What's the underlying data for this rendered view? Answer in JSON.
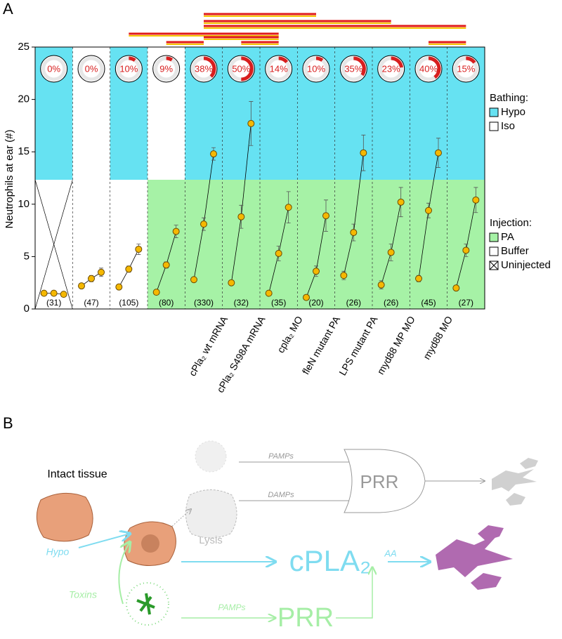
{
  "panels": {
    "a": "A",
    "b": "B"
  },
  "chart_data": {
    "type": "line",
    "y_label": "Neutrophils at ear (#)",
    "ylim": [
      0,
      25
    ],
    "yticks": [
      0,
      5,
      10,
      15,
      20,
      25
    ],
    "categories": [
      null,
      null,
      null,
      null,
      null,
      "cPla₂ wt mRNA",
      "cPla₂ S498A mRNA",
      "cpla₂ MO",
      "fleN mutant PA",
      "LPS mutant PA",
      "myd88 MP MO",
      "myd88 MO"
    ],
    "point_color": "#f5b800",
    "groups": [
      {
        "values": [
          1.5,
          1.5,
          1.4
        ],
        "errors": [
          0.1,
          0.1,
          0.1
        ]
      },
      {
        "values": [
          2.2,
          2.9,
          3.5
        ],
        "errors": [
          0.2,
          0.3,
          0.4
        ]
      },
      {
        "values": [
          2.1,
          3.8,
          5.7
        ],
        "errors": [
          0.2,
          0.3,
          0.5
        ]
      },
      {
        "values": [
          1.6,
          4.2,
          7.4
        ],
        "errors": [
          0.1,
          0.3,
          0.6
        ]
      },
      {
        "values": [
          2.8,
          8.1,
          14.8
        ],
        "errors": [
          0.2,
          0.6,
          0.6
        ]
      },
      {
        "values": [
          2.5,
          8.8,
          17.7
        ],
        "errors": [
          0.2,
          1.1,
          2.1
        ]
      },
      {
        "values": [
          1.5,
          5.3,
          9.7
        ],
        "errors": [
          0.2,
          0.7,
          1.5
        ]
      },
      {
        "values": [
          1.1,
          3.6,
          8.9
        ],
        "errors": [
          0.1,
          0.5,
          1.5
        ]
      },
      {
        "values": [
          3.2,
          7.3,
          14.9
        ],
        "errors": [
          0.4,
          0.8,
          1.7
        ]
      },
      {
        "values": [
          2.3,
          5.4,
          10.2
        ],
        "errors": [
          0.4,
          0.8,
          1.4
        ]
      },
      {
        "values": [
          2.9,
          9.4,
          14.9
        ],
        "errors": [
          0.3,
          0.7,
          1.4
        ]
      },
      {
        "values": [
          2.0,
          5.6,
          10.4
        ],
        "errors": [
          0.2,
          0.6,
          1.2
        ]
      }
    ],
    "percent": {
      "values": [
        0,
        0,
        10,
        9,
        38,
        50,
        14,
        10,
        35,
        23,
        40,
        15
      ],
      "value_labels": [
        "0%",
        "0%",
        "10%",
        "9%",
        "38%",
        "50%",
        "14%",
        "10%",
        "35%",
        "23%",
        "40%",
        "15%"
      ],
      "color": "#d81e1e"
    },
    "counts": {
      "values": [
        31,
        47,
        105,
        80,
        330,
        32,
        35,
        20,
        26,
        26,
        45,
        27
      ],
      "value_labels": [
        "(31)",
        "(47)",
        "(105)",
        "(80)",
        "(330)",
        "(32)",
        "(35)",
        "(20)",
        "(26)",
        "(26)",
        "(45)",
        "(27)"
      ]
    },
    "comparisons": [
      [
        4,
        7
      ],
      [
        4,
        9
      ],
      [
        4,
        11
      ],
      [
        2,
        6
      ],
      [
        4,
        6
      ],
      [
        3,
        4
      ],
      [
        5,
        6
      ],
      [
        10,
        11
      ]
    ],
    "bathing": {
      "title": "Bathing:",
      "items": [
        {
          "label": "Hypo",
          "color": "#66e2f2"
        },
        {
          "label": "Iso",
          "color": "#ffffff"
        }
      ],
      "groups": [
        0,
        1,
        0,
        1,
        0,
        0,
        0,
        0,
        0,
        0,
        0,
        0
      ]
    },
    "injection": {
      "title": "Injection:",
      "items": [
        {
          "label": "PA",
          "color": "#a6f2a6"
        },
        {
          "label": "Buffer",
          "color": "#ffffff"
        },
        {
          "label": "Uninjected",
          "color": "#ffffff"
        }
      ],
      "groups": [
        2,
        1,
        1,
        0,
        0,
        0,
        0,
        0,
        0,
        0,
        0,
        0
      ]
    }
  },
  "panel_b": {
    "intact": "Intact tissue",
    "hypo": "Hypo",
    "toxins": "Toxins",
    "lysis": "Lysis",
    "pamps_top": "PAMPs",
    "damps": "DAMPs",
    "prr_top": "PRR",
    "cpla2": "cPLA₂",
    "aa": "AA",
    "pamps_bottom": "PAMPs",
    "prr_bottom": "PRR"
  }
}
